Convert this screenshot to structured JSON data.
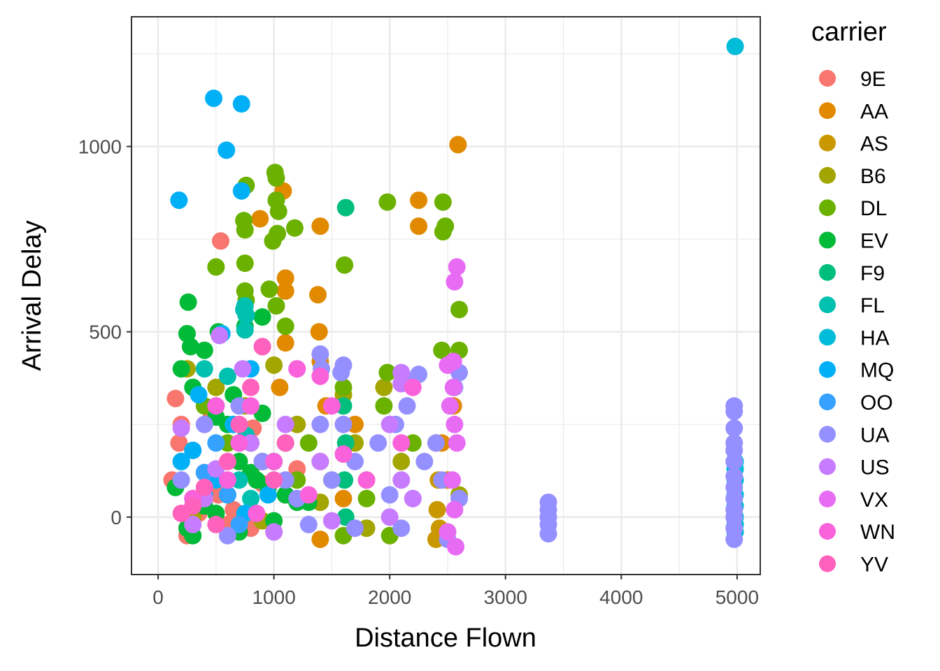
{
  "chart_data": {
    "type": "scatter",
    "title": "",
    "xlabel": "Distance Flown",
    "ylabel": "Arrival Delay",
    "xlim": [
      -230,
      5200
    ],
    "ylim": [
      -155,
      1350
    ],
    "x_ticks": [
      0,
      1000,
      2000,
      3000,
      4000,
      5000
    ],
    "x_tick_labels": [
      "0",
      "1000",
      "2000",
      "3000",
      "4000",
      "5000"
    ],
    "y_ticks": [
      0,
      500,
      1000
    ],
    "y_tick_labels": [
      "0",
      "500",
      "1000"
    ],
    "grid": true,
    "legend": {
      "title": "carrier",
      "placement": "right",
      "entries": [
        {
          "name": "9E",
          "color": "#F8766D"
        },
        {
          "name": "AA",
          "color": "#E18A00"
        },
        {
          "name": "AS",
          "color": "#C99800"
        },
        {
          "name": "B6",
          "color": "#A3A500"
        },
        {
          "name": "DL",
          "color": "#6BB100"
        },
        {
          "name": "EV",
          "color": "#00BA38"
        },
        {
          "name": "F9",
          "color": "#00BF7D"
        },
        {
          "name": "FL",
          "color": "#00C0AF"
        },
        {
          "name": "HA",
          "color": "#00BCD8"
        },
        {
          "name": "MQ",
          "color": "#00B0F6"
        },
        {
          "name": "OO",
          "color": "#35A2FF"
        },
        {
          "name": "UA",
          "color": "#9590FF"
        },
        {
          "name": "US",
          "color": "#C77CFF"
        },
        {
          "name": "VX",
          "color": "#E76BF3"
        },
        {
          "name": "WN",
          "color": "#FA62DB"
        },
        {
          "name": "YV",
          "color": "#FF62BC"
        }
      ]
    },
    "series": [
      {
        "name": "9E",
        "points": [
          [
            540,
            745
          ],
          [
            150,
            320
          ],
          [
            200,
            250
          ],
          [
            300,
            180
          ],
          [
            400,
            120
          ],
          [
            520,
            60
          ],
          [
            650,
            20
          ],
          [
            800,
            -30
          ],
          [
            1000,
            -40
          ],
          [
            250,
            -50
          ],
          [
            120,
            100
          ],
          [
            460,
            280
          ],
          [
            700,
            150
          ],
          [
            900,
            90
          ],
          [
            1100,
            60
          ],
          [
            350,
            10
          ],
          [
            600,
            -20
          ],
          [
            180,
            200
          ],
          [
            1200,
            130
          ],
          [
            820,
            240
          ]
        ]
      },
      {
        "name": "AA",
        "points": [
          [
            2590,
            1005
          ],
          [
            1080,
            880
          ],
          [
            880,
            805
          ],
          [
            2250,
            855
          ],
          [
            2250,
            785
          ],
          [
            1400,
            785
          ],
          [
            1100,
            645
          ],
          [
            1100,
            610
          ],
          [
            1380,
            600
          ],
          [
            1390,
            500
          ],
          [
            1100,
            470
          ],
          [
            1400,
            420
          ],
          [
            1450,
            300
          ],
          [
            1700,
            250
          ],
          [
            1400,
            150
          ],
          [
            2450,
            200
          ],
          [
            1400,
            -60
          ],
          [
            2500,
            -40
          ],
          [
            1600,
            50
          ],
          [
            1050,
            350
          ],
          [
            2500,
            100
          ],
          [
            2550,
            300
          ]
        ]
      },
      {
        "name": "AS",
        "points": [
          [
            2400,
            -60
          ],
          [
            2410,
            20
          ],
          [
            2420,
            100
          ],
          [
            2400,
            200
          ],
          [
            2430,
            -30
          ]
        ]
      },
      {
        "name": "B6",
        "points": [
          [
            1000,
            410
          ],
          [
            1600,
            330
          ],
          [
            1700,
            200
          ],
          [
            1800,
            100
          ],
          [
            1950,
            350
          ],
          [
            2100,
            150
          ],
          [
            250,
            400
          ],
          [
            500,
            350
          ],
          [
            750,
            300
          ],
          [
            1200,
            250
          ],
          [
            1500,
            100
          ],
          [
            1800,
            -30
          ],
          [
            2600,
            60
          ],
          [
            1100,
            60
          ],
          [
            300,
            0
          ],
          [
            900,
            -10
          ],
          [
            1400,
            40
          ]
        ]
      },
      {
        "name": "DL",
        "points": [
          [
            1010,
            930
          ],
          [
            1020,
            915
          ],
          [
            760,
            895
          ],
          [
            1020,
            855
          ],
          [
            1040,
            825
          ],
          [
            1980,
            850
          ],
          [
            2460,
            850
          ],
          [
            2480,
            785
          ],
          [
            2460,
            770
          ],
          [
            740,
            800
          ],
          [
            750,
            775
          ],
          [
            1180,
            780
          ],
          [
            1030,
            765
          ],
          [
            990,
            745
          ],
          [
            500,
            675
          ],
          [
            1610,
            680
          ],
          [
            750,
            685
          ],
          [
            2600,
            560
          ],
          [
            750,
            610
          ],
          [
            760,
            585
          ],
          [
            960,
            615
          ],
          [
            1020,
            570
          ],
          [
            1100,
            515
          ],
          [
            2600,
            450
          ],
          [
            2450,
            450
          ],
          [
            1980,
            390
          ],
          [
            1950,
            300
          ],
          [
            1600,
            350
          ],
          [
            1800,
            50
          ],
          [
            600,
            200
          ],
          [
            900,
            150
          ],
          [
            1200,
            100
          ],
          [
            2200,
            200
          ],
          [
            2000,
            -50
          ],
          [
            1600,
            -50
          ],
          [
            400,
            300
          ],
          [
            1300,
            200
          ]
        ]
      },
      {
        "name": "EV",
        "points": [
          [
            260,
            580
          ],
          [
            250,
            495
          ],
          [
            520,
            500
          ],
          [
            900,
            540
          ],
          [
            750,
            515
          ],
          [
            280,
            460
          ],
          [
            400,
            450
          ],
          [
            200,
            400
          ],
          [
            300,
            350
          ],
          [
            500,
            270
          ],
          [
            600,
            250
          ],
          [
            700,
            150
          ],
          [
            800,
            200
          ],
          [
            850,
            100
          ],
          [
            900,
            280
          ],
          [
            1000,
            150
          ],
          [
            1100,
            60
          ],
          [
            1200,
            40
          ],
          [
            1300,
            40
          ],
          [
            500,
            10
          ],
          [
            300,
            -50
          ],
          [
            700,
            -40
          ],
          [
            400,
            30
          ],
          [
            600,
            60
          ],
          [
            800,
            120
          ],
          [
            200,
            150
          ],
          [
            150,
            80
          ],
          [
            250,
            -30
          ],
          [
            1100,
            200
          ],
          [
            1000,
            -10
          ],
          [
            450,
            110
          ],
          [
            650,
            330
          ],
          [
            950,
            80
          ]
        ]
      },
      {
        "name": "F9",
        "points": [
          [
            1620,
            835
          ],
          [
            1600,
            300
          ],
          [
            1620,
            200
          ],
          [
            1610,
            100
          ],
          [
            1620,
            0
          ]
        ]
      },
      {
        "name": "FL",
        "points": [
          [
            750,
            570
          ],
          [
            740,
            560
          ],
          [
            760,
            545
          ],
          [
            750,
            505
          ],
          [
            400,
            400
          ],
          [
            600,
            380
          ],
          [
            760,
            220
          ],
          [
            500,
            300
          ],
          [
            700,
            100
          ],
          [
            800,
            50
          ]
        ]
      },
      {
        "name": "HA",
        "points": [
          [
            4983,
            1270
          ],
          [
            4983,
            150
          ],
          [
            4983,
            130
          ],
          [
            4983,
            100
          ],
          [
            4983,
            60
          ],
          [
            4983,
            30
          ],
          [
            4983,
            0
          ],
          [
            4983,
            -20
          ],
          [
            4983,
            -40
          ]
        ]
      },
      {
        "name": "MQ",
        "points": [
          [
            480,
            1130
          ],
          [
            720,
            1115
          ],
          [
            590,
            990
          ],
          [
            720,
            880
          ],
          [
            180,
            855
          ],
          [
            550,
            495
          ],
          [
            350,
            330
          ],
          [
            700,
            200
          ],
          [
            500,
            100
          ],
          [
            300,
            180
          ],
          [
            800,
            400
          ],
          [
            400,
            60
          ],
          [
            650,
            250
          ],
          [
            750,
            10
          ],
          [
            200,
            150
          ],
          [
            950,
            60
          ]
        ]
      },
      {
        "name": "OO",
        "points": [
          [
            400,
            120
          ],
          [
            500,
            200
          ],
          [
            600,
            60
          ],
          [
            300,
            50
          ],
          [
            700,
            -20
          ]
        ]
      },
      {
        "name": "UA",
        "points": [
          [
            3370,
            40
          ],
          [
            3370,
            20
          ],
          [
            3370,
            0
          ],
          [
            3370,
            -20
          ],
          [
            3370,
            -45
          ],
          [
            4975,
            300
          ],
          [
            4975,
            285
          ],
          [
            4975,
            240
          ],
          [
            4975,
            200
          ],
          [
            4975,
            180
          ],
          [
            4975,
            150
          ],
          [
            4975,
            110
          ],
          [
            4975,
            80
          ],
          [
            4975,
            50
          ],
          [
            4975,
            20
          ],
          [
            4975,
            0
          ],
          [
            4975,
            -30
          ],
          [
            4975,
            -60
          ],
          [
            1400,
            440
          ],
          [
            1600,
            410
          ],
          [
            1580,
            390
          ],
          [
            1410,
            400
          ],
          [
            2250,
            385
          ],
          [
            2130,
            370
          ],
          [
            2600,
            390
          ],
          [
            2560,
            350
          ],
          [
            2150,
            300
          ],
          [
            2050,
            250
          ],
          [
            2300,
            150
          ],
          [
            2450,
            100
          ],
          [
            2600,
            50
          ],
          [
            1400,
            250
          ],
          [
            1600,
            250
          ],
          [
            1700,
            150
          ],
          [
            1900,
            200
          ],
          [
            2200,
            50
          ],
          [
            2100,
            -30
          ],
          [
            2500,
            -60
          ],
          [
            2400,
            200
          ],
          [
            1500,
            100
          ],
          [
            1700,
            -30
          ],
          [
            2000,
            60
          ],
          [
            900,
            150
          ],
          [
            1100,
            100
          ],
          [
            1200,
            50
          ],
          [
            1300,
            -20
          ],
          [
            700,
            300
          ],
          [
            400,
            250
          ],
          [
            200,
            100
          ],
          [
            600,
            -50
          ]
        ]
      },
      {
        "name": "US",
        "points": [
          [
            2100,
            390
          ],
          [
            2100,
            360
          ],
          [
            2000,
            250
          ],
          [
            2100,
            100
          ],
          [
            530,
            490
          ],
          [
            730,
            400
          ],
          [
            1100,
            250
          ],
          [
            500,
            130
          ],
          [
            200,
            240
          ],
          [
            400,
            50
          ],
          [
            800,
            200
          ],
          [
            1200,
            400
          ],
          [
            1400,
            150
          ],
          [
            2200,
            50
          ],
          [
            300,
            -20
          ],
          [
            1000,
            -40
          ],
          [
            1500,
            -10
          ],
          [
            2000,
            0
          ]
        ]
      },
      {
        "name": "VX",
        "points": [
          [
            2580,
            675
          ],
          [
            2560,
            635
          ],
          [
            2550,
            420
          ],
          [
            2500,
            410
          ],
          [
            2550,
            350
          ],
          [
            2580,
            200
          ],
          [
            2540,
            100
          ],
          [
            2560,
            20
          ],
          [
            2570,
            -80
          ],
          [
            2500,
            -40
          ],
          [
            2520,
            300
          ],
          [
            2560,
            250
          ]
        ]
      },
      {
        "name": "WN",
        "points": [
          [
            1400,
            380
          ],
          [
            1500,
            300
          ],
          [
            1600,
            170
          ],
          [
            1200,
            400
          ],
          [
            900,
            460
          ],
          [
            800,
            300
          ],
          [
            700,
            200
          ],
          [
            600,
            100
          ],
          [
            2200,
            350
          ],
          [
            2100,
            200
          ],
          [
            1800,
            100
          ],
          [
            300,
            50
          ],
          [
            500,
            300
          ],
          [
            1000,
            150
          ],
          [
            1300,
            60
          ],
          [
            850,
            10
          ]
        ]
      },
      {
        "name": "YV",
        "points": [
          [
            900,
            460
          ],
          [
            800,
            350
          ],
          [
            700,
            250
          ],
          [
            600,
            150
          ],
          [
            400,
            80
          ],
          [
            300,
            30
          ],
          [
            200,
            10
          ],
          [
            500,
            -20
          ],
          [
            1000,
            100
          ],
          [
            1100,
            200
          ]
        ]
      }
    ]
  }
}
